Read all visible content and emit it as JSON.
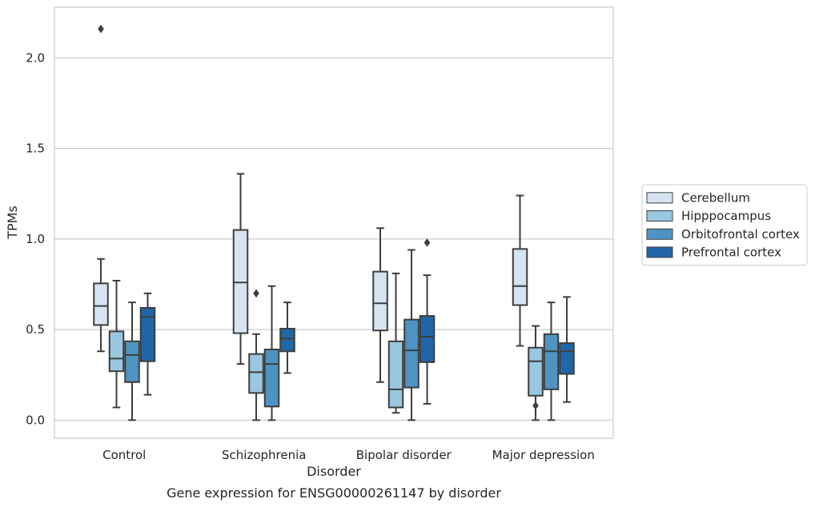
{
  "chart_data": {
    "type": "box",
    "title": "",
    "caption": "Gene expression for ENSG00000261147 by disorder",
    "xlabel": "Disorder",
    "ylabel": "TPMs",
    "ylim": [
      -0.1,
      2.28
    ],
    "yticks": [
      "0.0",
      "0.5",
      "1.0",
      "1.5",
      "2.0"
    ],
    "grid": true,
    "legend_position": "right",
    "categories": [
      "Control",
      "Schizophrenia",
      "Bipolar disorder",
      "Major depression"
    ],
    "series": [
      {
        "name": "Cerebellum",
        "color": "#d6e4f2",
        "boxes": [
          {
            "whislo": 0.38,
            "q1": 0.525,
            "med": 0.63,
            "q3": 0.755,
            "whishi": 0.89,
            "fliers": [
              2.16
            ]
          },
          {
            "whislo": 0.31,
            "q1": 0.48,
            "med": 0.76,
            "q3": 1.05,
            "whishi": 1.36,
            "fliers": []
          },
          {
            "whislo": 0.21,
            "q1": 0.495,
            "med": 0.645,
            "q3": 0.82,
            "whishi": 1.06,
            "fliers": []
          },
          {
            "whislo": 0.41,
            "q1": 0.635,
            "med": 0.74,
            "q3": 0.945,
            "whishi": 1.24,
            "fliers": []
          }
        ]
      },
      {
        "name": "Hipppocampus",
        "color": "#9ac7e0",
        "boxes": [
          {
            "whislo": 0.07,
            "q1": 0.27,
            "med": 0.34,
            "q3": 0.49,
            "whishi": 0.77,
            "fliers": []
          },
          {
            "whislo": 0.0,
            "q1": 0.15,
            "med": 0.265,
            "q3": 0.365,
            "whishi": 0.475,
            "fliers": [
              0.7
            ]
          },
          {
            "whislo": 0.04,
            "q1": 0.07,
            "med": 0.17,
            "q3": 0.435,
            "whishi": 0.81,
            "fliers": []
          },
          {
            "whislo": 0.0,
            "q1": 0.135,
            "med": 0.325,
            "q3": 0.4,
            "whishi": 0.52,
            "fliers": [
              0.08
            ]
          }
        ]
      },
      {
        "name": "Orbitofrontal cortex",
        "color": "#4f93c2",
        "boxes": [
          {
            "whislo": 0.0,
            "q1": 0.21,
            "med": 0.36,
            "q3": 0.435,
            "whishi": 0.65,
            "fliers": []
          },
          {
            "whislo": 0.0,
            "q1": 0.075,
            "med": 0.31,
            "q3": 0.39,
            "whishi": 0.74,
            "fliers": []
          },
          {
            "whislo": 0.0,
            "q1": 0.18,
            "med": 0.385,
            "q3": 0.555,
            "whishi": 0.94,
            "fliers": []
          },
          {
            "whislo": 0.0,
            "q1": 0.17,
            "med": 0.38,
            "q3": 0.475,
            "whishi": 0.65,
            "fliers": []
          }
        ]
      },
      {
        "name": "Prefrontal cortex",
        "color": "#2166a8",
        "boxes": [
          {
            "whislo": 0.14,
            "q1": 0.325,
            "med": 0.57,
            "q3": 0.62,
            "whishi": 0.7,
            "fliers": []
          },
          {
            "whislo": 0.26,
            "q1": 0.38,
            "med": 0.45,
            "q3": 0.505,
            "whishi": 0.65,
            "fliers": []
          },
          {
            "whislo": 0.09,
            "q1": 0.32,
            "med": 0.46,
            "q3": 0.575,
            "whishi": 0.8,
            "fliers": [
              0.98
            ]
          },
          {
            "whislo": 0.1,
            "q1": 0.255,
            "med": 0.38,
            "q3": 0.425,
            "whishi": 0.68,
            "fliers": []
          }
        ]
      }
    ]
  }
}
